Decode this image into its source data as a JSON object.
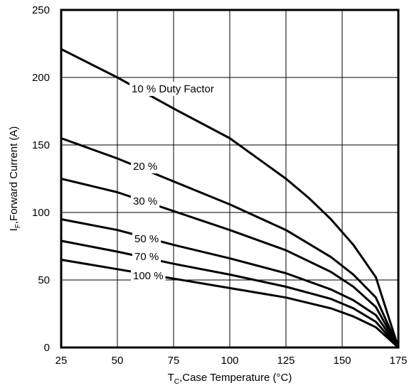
{
  "chart_data": {
    "type": "line",
    "xlabel": {
      "main": "T",
      "sub": "C",
      "rest": ",Case Temperature (°C)"
    },
    "ylabel": {
      "main": "I",
      "sub": "F",
      "rest": ",Forward Current (A)"
    },
    "xlim": [
      25,
      175
    ],
    "ylim": [
      0,
      250
    ],
    "xticks": [
      25,
      50,
      75,
      100,
      125,
      150,
      175
    ],
    "yticks": [
      0,
      50,
      100,
      150,
      200,
      250
    ],
    "grid": true,
    "series": [
      {
        "name": "10 % Duty Factor",
        "x": [
          25,
          50,
          75,
          100,
          115,
          125,
          135,
          145,
          155,
          165,
          175
        ],
        "y": [
          221,
          200,
          177,
          155,
          137,
          125,
          111,
          95,
          76,
          52,
          0
        ]
      },
      {
        "name": "20 %",
        "x": [
          25,
          50,
          75,
          100,
          125,
          145,
          155,
          165,
          175
        ],
        "y": [
          155,
          140,
          123,
          106,
          87,
          67,
          54,
          37,
          0
        ]
      },
      {
        "name": "30 %",
        "x": [
          25,
          50,
          75,
          100,
          125,
          145,
          155,
          165,
          175
        ],
        "y": [
          125,
          115,
          101,
          87,
          72,
          56,
          45,
          30,
          0
        ]
      },
      {
        "name": "50 %",
        "x": [
          25,
          50,
          75,
          100,
          125,
          145,
          155,
          165,
          175
        ],
        "y": [
          95,
          87,
          76,
          66,
          55,
          43,
          35,
          24,
          0
        ]
      },
      {
        "name": "70 %",
        "x": [
          25,
          50,
          75,
          100,
          125,
          145,
          155,
          165,
          175
        ],
        "y": [
          79,
          71,
          62,
          54,
          45,
          36,
          29,
          19,
          0
        ]
      },
      {
        "name": "100 %",
        "x": [
          25,
          50,
          75,
          100,
          125,
          145,
          155,
          165,
          175
        ],
        "y": [
          65,
          58,
          51,
          44,
          37,
          29,
          23,
          15,
          0
        ]
      }
    ]
  }
}
